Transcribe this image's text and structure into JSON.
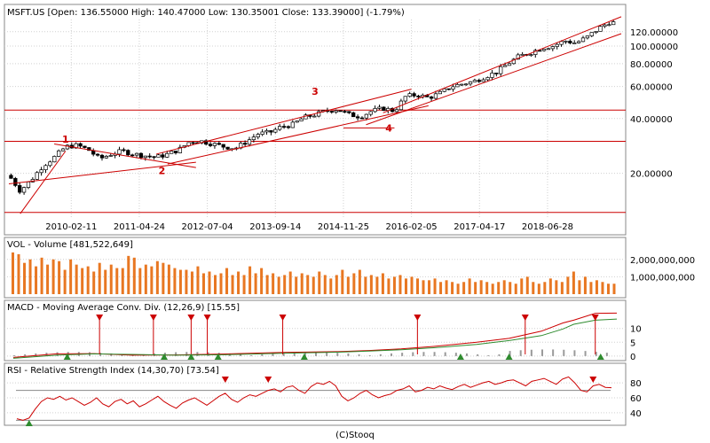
{
  "chart_data": [
    {
      "type": "candlestick",
      "title": "MSFT.US [Open: 136.55000  High: 140.47000  Low: 130.35001  Close: 133.39000] (-1.79%)",
      "scale": "log",
      "ylim": [
        11.5,
        140
      ],
      "y_ticks": [
        {
          "value": 20,
          "label": "20.00000"
        },
        {
          "value": 40,
          "label": "40.00000"
        },
        {
          "value": 60,
          "label": "60.00000"
        },
        {
          "value": 80,
          "label": "80.00000"
        },
        {
          "value": 100,
          "label": "100.00000"
        },
        {
          "value": 120,
          "label": "120.00000"
        }
      ],
      "x_ticks": [
        "2010-02-11",
        "2011-04-24",
        "2012-07-04",
        "2013-09-14",
        "2014-11-25",
        "2016-02-05",
        "2017-04-17",
        "2018-06-28"
      ],
      "grid": true,
      "close_path": [
        [
          2009.0,
          19.5
        ],
        [
          2009.2,
          16.0
        ],
        [
          2009.4,
          18.5
        ],
        [
          2009.6,
          22.0
        ],
        [
          2009.8,
          24.5
        ],
        [
          2010.0,
          28.0
        ],
        [
          2010.2,
          28.5
        ],
        [
          2010.4,
          27.0
        ],
        [
          2010.6,
          24.0
        ],
        [
          2010.8,
          25.5
        ],
        [
          2011.0,
          26.5
        ],
        [
          2011.2,
          25.5
        ],
        [
          2011.4,
          25.0
        ],
        [
          2011.6,
          24.5
        ],
        [
          2011.8,
          25.5
        ],
        [
          2012.0,
          27.0
        ],
        [
          2012.2,
          30.0
        ],
        [
          2012.4,
          30.0
        ],
        [
          2012.6,
          29.0
        ],
        [
          2012.8,
          28.0
        ],
        [
          2013.0,
          27.5
        ],
        [
          2013.2,
          30.0
        ],
        [
          2013.4,
          33.0
        ],
        [
          2013.6,
          33.5
        ],
        [
          2013.8,
          36.0
        ],
        [
          2014.0,
          37.0
        ],
        [
          2014.2,
          40.5
        ],
        [
          2014.4,
          42.0
        ],
        [
          2014.6,
          44.0
        ],
        [
          2014.8,
          45.0
        ],
        [
          2015.0,
          42.0
        ],
        [
          2015.2,
          41.0
        ],
        [
          2015.4,
          44.0
        ],
        [
          2015.6,
          45.5
        ],
        [
          2015.8,
          44.0
        ],
        [
          2016.0,
          53.0
        ],
        [
          2016.2,
          54.0
        ],
        [
          2016.4,
          52.0
        ],
        [
          2016.6,
          55.0
        ],
        [
          2016.8,
          60.0
        ],
        [
          2017.0,
          62.0
        ],
        [
          2017.2,
          64.0
        ],
        [
          2017.4,
          68.0
        ],
        [
          2017.6,
          72.0
        ],
        [
          2017.8,
          80.0
        ],
        [
          2018.0,
          88.0
        ],
        [
          2018.2,
          92.0
        ],
        [
          2018.4,
          98.0
        ],
        [
          2018.6,
          100.0
        ],
        [
          2018.8,
          107.0
        ],
        [
          2019.0,
          104.0
        ],
        [
          2019.2,
          112.0
        ],
        [
          2019.4,
          125.0
        ],
        [
          2019.6,
          136.0
        ],
        [
          2019.7,
          133.39
        ]
      ],
      "horizontal_levels": [
        12.2,
        30.0,
        44.5
      ],
      "trend_annotations": [
        "1",
        "2",
        "3",
        "4"
      ]
    },
    {
      "type": "bar",
      "title": "VOL - Volume [481,522,649]",
      "y_ticks": [
        {
          "value": 1000000000,
          "label": "1,000,000,000"
        },
        {
          "value": 2000000000,
          "label": "2,000,000,000"
        }
      ],
      "ylim": [
        0,
        2600000000
      ],
      "values": [
        2400000000,
        2300000000,
        1800000000,
        2000000000,
        1600000000,
        2100000000,
        1700000000,
        2000000000,
        1900000000,
        1400000000,
        2000000000,
        1700000000,
        1500000000,
        1600000000,
        1300000000,
        1800000000,
        1400000000,
        1700000000,
        1500000000,
        1500000000,
        2200000000,
        2100000000,
        1500000000,
        1700000000,
        1600000000,
        1900000000,
        1800000000,
        1700000000,
        1500000000,
        1400000000,
        1400000000,
        1300000000,
        1600000000,
        1200000000,
        1300000000,
        1100000000,
        1200000000,
        1500000000,
        1100000000,
        1300000000,
        1100000000,
        1600000000,
        1200000000,
        1500000000,
        1100000000,
        1200000000,
        1000000000,
        1100000000,
        1300000000,
        1000000000,
        1200000000,
        1100000000,
        1000000000,
        1300000000,
        1100000000,
        900000000,
        1100000000,
        1400000000,
        1000000000,
        1200000000,
        1400000000,
        1000000000,
        1100000000,
        1000000000,
        1200000000,
        900000000,
        1000000000,
        1100000000,
        900000000,
        1000000000,
        900000000,
        800000000,
        800000000,
        900000000,
        700000000,
        800000000,
        700000000,
        600000000,
        700000000,
        900000000,
        700000000,
        800000000,
        700000000,
        600000000,
        700000000,
        800000000,
        700000000,
        600000000,
        900000000,
        1000000000,
        700000000,
        600000000,
        700000000,
        900000000,
        800000000,
        700000000,
        1000000000,
        1300000000,
        800000000,
        1000000000,
        700000000,
        800000000,
        700000000,
        600000000,
        600000000
      ]
    },
    {
      "type": "line",
      "title": "MACD - Moving Average Conv. Div. (12,26,9) [15.55]",
      "y_ticks": [
        {
          "value": 0,
          "label": "0"
        },
        {
          "value": 5,
          "label": "5"
        },
        {
          "value": 10,
          "label": "10"
        }
      ],
      "ylim": [
        -1,
        16
      ],
      "series": [
        {
          "name": "MACD",
          "color": "#cc0000",
          "points": [
            [
              0,
              -0.5
            ],
            [
              8,
              0.8
            ],
            [
              15,
              0.9
            ],
            [
              22,
              0.3
            ],
            [
              30,
              0.4
            ],
            [
              40,
              0.8
            ],
            [
              50,
              1.3
            ],
            [
              60,
              1.6
            ],
            [
              66,
              2.0
            ],
            [
              72,
              2.6
            ],
            [
              78,
              3.5
            ],
            [
              86,
              5.0
            ],
            [
              92,
              6.4
            ],
            [
              98,
              9.0
            ],
            [
              102,
              12.0
            ],
            [
              104,
              13.0
            ],
            [
              108,
              15.5
            ],
            [
              112,
              15.55
            ]
          ]
        },
        {
          "name": "Signal",
          "color": "#2e8b2e",
          "points": [
            [
              0,
              -0.8
            ],
            [
              8,
              0.3
            ],
            [
              15,
              0.8
            ],
            [
              22,
              0.6
            ],
            [
              30,
              0.3
            ],
            [
              40,
              0.5
            ],
            [
              50,
              1.0
            ],
            [
              60,
              1.4
            ],
            [
              66,
              1.8
            ],
            [
              72,
              2.3
            ],
            [
              78,
              3.0
            ],
            [
              86,
              4.2
            ],
            [
              92,
              5.6
            ],
            [
              98,
              7.4
            ],
            [
              102,
              9.8
            ],
            [
              104,
              11.5
            ],
            [
              108,
              13.0
            ],
            [
              112,
              13.4
            ]
          ]
        }
      ],
      "sell_signals": [
        16,
        26,
        33,
        36,
        50,
        75,
        95,
        108
      ],
      "buy_signals": [
        10,
        28,
        33,
        38,
        54,
        83,
        92,
        109
      ]
    },
    {
      "type": "line",
      "title": "RSI - Relative Strength Index (14,30,70) [73.54]",
      "y_ticks": [
        {
          "value": 40,
          "label": "40"
        },
        {
          "value": 60,
          "label": "60"
        },
        {
          "value": 80,
          "label": "80"
        }
      ],
      "ylim": [
        28,
        92
      ],
      "bands": [
        30,
        70
      ],
      "values": [
        32,
        30,
        33,
        45,
        55,
        60,
        58,
        62,
        57,
        60,
        55,
        50,
        54,
        60,
        52,
        48,
        55,
        58,
        52,
        56,
        48,
        52,
        57,
        62,
        55,
        50,
        46,
        53,
        57,
        60,
        55,
        50,
        56,
        62,
        66,
        58,
        54,
        60,
        64,
        62,
        66,
        70,
        72,
        68,
        74,
        76,
        70,
        66,
        75,
        80,
        78,
        82,
        76,
        62,
        56,
        60,
        66,
        70,
        64,
        60,
        63,
        65,
        70,
        72,
        76,
        68,
        70,
        74,
        72,
        76,
        73,
        71,
        75,
        78,
        74,
        77,
        80,
        82,
        78,
        80,
        83,
        84,
        80,
        76,
        82,
        84,
        86,
        82,
        78,
        85,
        88,
        80,
        70,
        68,
        76,
        78,
        74,
        73.54
      ],
      "sell_signals": [
        34,
        41,
        94
      ],
      "buy_signals": [
        2
      ]
    }
  ],
  "footer": "(C)Stooq"
}
